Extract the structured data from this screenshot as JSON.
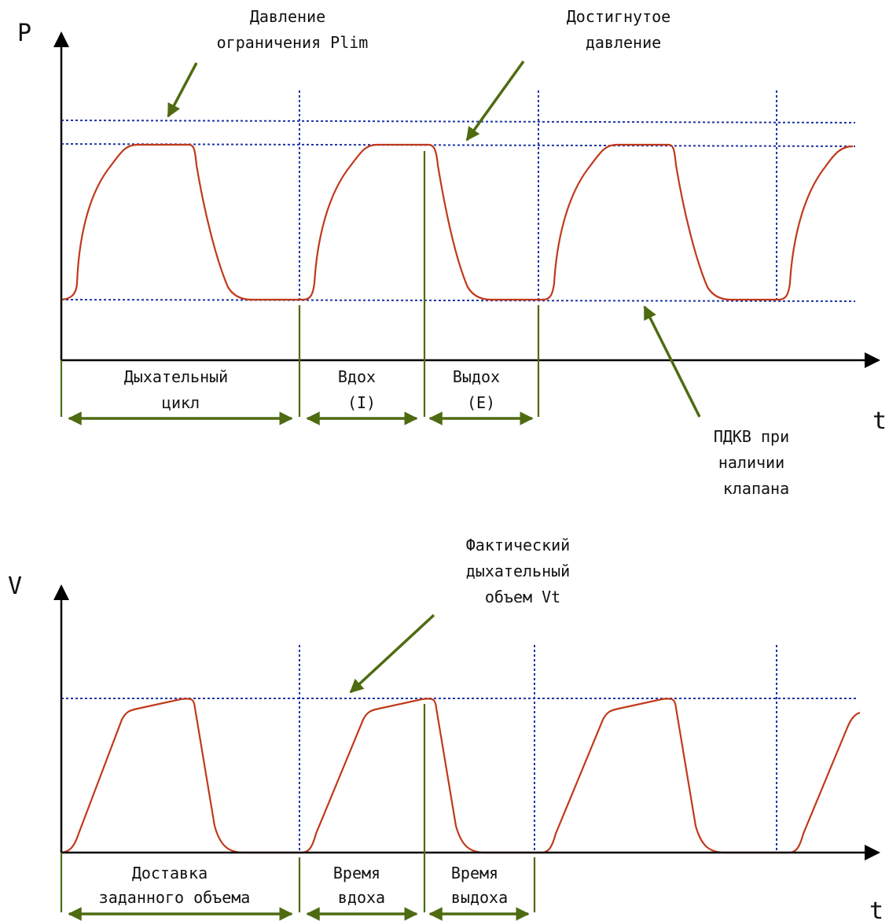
{
  "colors": {
    "axis": "#000000",
    "curve": "#c0391b",
    "dotted": "#1f35a8",
    "annotation": "#4f6b12",
    "text": "#111111"
  },
  "pressure_chart": {
    "y_axis_label": "P",
    "x_axis_label": "t",
    "labels": {
      "plim": [
        "Давление",
        "ограничения Plim"
      ],
      "reached": [
        "Достигнутое",
        "давление"
      ],
      "peep": [
        "ПДКВ при",
        "наличии",
        "клапана"
      ],
      "cycle": [
        "Дыхательный",
        "цикл"
      ],
      "inhale": [
        "Вдох",
        "(I)"
      ],
      "exhale": [
        "Выдох",
        "(E)"
      ]
    }
  },
  "volume_chart": {
    "y_axis_label": "V",
    "x_axis_label": "t",
    "labels": {
      "vt": [
        "Фактический",
        "дыхательный",
        "объем Vt"
      ],
      "delivery": [
        "Доставка",
        "заданного объема"
      ],
      "inhale_time": [
        "Время",
        "вдоха"
      ],
      "exhale_time": [
        "Время",
        "выдоха"
      ]
    }
  }
}
